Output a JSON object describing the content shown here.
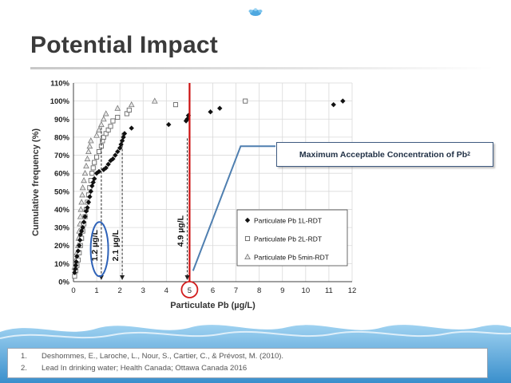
{
  "slide": {
    "title": "Potential Impact",
    "callout": {
      "text": "Maximum Acceptable Concentration of Pb",
      "superscript": "2"
    },
    "references": [
      {
        "num": "1.",
        "text": "Deshommes, E., Laroche, L., Nour, S., Cartier, C., & Prévost, M. (2010)."
      },
      {
        "num": "2.",
        "text": "Lead In drinking water; Health Canada; Ottawa Canada 2016"
      }
    ]
  },
  "colors": {
    "title": "#3a3a3a",
    "red_line": "#cc1111",
    "circle_blue": "#2e62b8",
    "circle_red": "#d21e1e",
    "callout_line": "#4f7fb0",
    "water": "#5aa5d8"
  },
  "chart_data": {
    "type": "scatter",
    "xlabel": "Particulate Pb (µg/L)",
    "ylabel": "Cumulative frequency (%)",
    "xlim": [
      0,
      12
    ],
    "ylim": [
      0,
      110
    ],
    "x_ticks": [
      "0",
      "1",
      "2",
      "3",
      "4",
      "5",
      "6",
      "7",
      "8",
      "9",
      "10",
      "11",
      "12"
    ],
    "y_ticks": [
      "0%",
      "10%",
      "20%",
      "30%",
      "40%",
      "50%",
      "60%",
      "70%",
      "80%",
      "90%",
      "100%",
      "110%"
    ],
    "grid": true,
    "legend_position": "bottom-right",
    "series": [
      {
        "name": "Particulate Pb 1L-RDT",
        "marker": "diamond-filled",
        "points": [
          [
            0.05,
            5
          ],
          [
            0.08,
            7
          ],
          [
            0.1,
            9
          ],
          [
            0.12,
            11
          ],
          [
            0.15,
            14
          ],
          [
            0.2,
            17
          ],
          [
            0.25,
            20
          ],
          [
            0.28,
            23
          ],
          [
            0.3,
            26
          ],
          [
            0.35,
            28
          ],
          [
            0.4,
            30
          ],
          [
            0.45,
            33
          ],
          [
            0.5,
            36
          ],
          [
            0.55,
            39
          ],
          [
            0.6,
            41
          ],
          [
            0.65,
            44
          ],
          [
            0.7,
            47
          ],
          [
            0.75,
            50
          ],
          [
            0.8,
            53
          ],
          [
            0.85,
            55
          ],
          [
            0.9,
            57
          ],
          [
            1.0,
            60
          ],
          [
            1.1,
            61
          ],
          [
            1.3,
            62
          ],
          [
            1.4,
            63
          ],
          [
            1.5,
            65
          ],
          [
            1.6,
            67
          ],
          [
            1.7,
            68
          ],
          [
            1.8,
            70
          ],
          [
            1.9,
            72
          ],
          [
            2.0,
            74
          ],
          [
            2.05,
            76
          ],
          [
            2.1,
            78
          ],
          [
            2.15,
            80
          ],
          [
            2.2,
            82
          ],
          [
            2.5,
            85
          ],
          [
            4.1,
            87
          ],
          [
            4.85,
            89
          ],
          [
            4.9,
            90
          ],
          [
            4.95,
            92
          ],
          [
            5.9,
            94
          ],
          [
            6.3,
            96
          ],
          [
            11.2,
            98
          ],
          [
            11.6,
            100
          ]
        ]
      },
      {
        "name": "Particulate Pb 2L-RDT",
        "marker": "square-open",
        "points": [
          [
            0.05,
            3
          ],
          [
            0.1,
            6
          ],
          [
            0.15,
            9
          ],
          [
            0.2,
            12
          ],
          [
            0.25,
            16
          ],
          [
            0.3,
            20
          ],
          [
            0.35,
            24
          ],
          [
            0.4,
            28
          ],
          [
            0.45,
            32
          ],
          [
            0.5,
            36
          ],
          [
            0.55,
            40
          ],
          [
            0.6,
            44
          ],
          [
            0.65,
            48
          ],
          [
            0.7,
            52
          ],
          [
            0.75,
            56
          ],
          [
            0.8,
            60
          ],
          [
            0.85,
            63
          ],
          [
            0.9,
            66
          ],
          [
            1.0,
            69
          ],
          [
            1.1,
            72
          ],
          [
            1.2,
            75
          ],
          [
            1.25,
            78
          ],
          [
            1.3,
            80
          ],
          [
            1.4,
            82
          ],
          [
            1.5,
            84
          ],
          [
            1.6,
            86
          ],
          [
            1.7,
            89
          ],
          [
            1.9,
            91
          ],
          [
            2.3,
            93
          ],
          [
            2.4,
            95
          ],
          [
            4.4,
            98
          ],
          [
            7.4,
            100
          ]
        ]
      },
      {
        "name": "Particulate Pb 5min-RDT",
        "marker": "triangle-open",
        "points": [
          [
            0.05,
            8
          ],
          [
            0.1,
            12
          ],
          [
            0.15,
            16
          ],
          [
            0.2,
            20
          ],
          [
            0.22,
            24
          ],
          [
            0.25,
            28
          ],
          [
            0.28,
            32
          ],
          [
            0.3,
            36
          ],
          [
            0.32,
            40
          ],
          [
            0.35,
            44
          ],
          [
            0.38,
            48
          ],
          [
            0.4,
            52
          ],
          [
            0.45,
            56
          ],
          [
            0.5,
            60
          ],
          [
            0.55,
            64
          ],
          [
            0.6,
            68
          ],
          [
            0.65,
            72
          ],
          [
            0.7,
            75
          ],
          [
            0.75,
            78
          ],
          [
            1.0,
            81
          ],
          [
            1.1,
            84
          ],
          [
            1.2,
            87
          ],
          [
            1.3,
            90
          ],
          [
            1.4,
            93
          ],
          [
            1.9,
            96
          ],
          [
            2.5,
            98
          ],
          [
            3.5,
            100
          ]
        ]
      }
    ],
    "annotations": [
      {
        "text": "1.2 µg/L",
        "x": 1.2
      },
      {
        "text": "2.1 µg/L",
        "x": 2.1
      },
      {
        "text": "4.9 µg/L",
        "x": 4.9
      }
    ],
    "mac_line_x": 5
  }
}
